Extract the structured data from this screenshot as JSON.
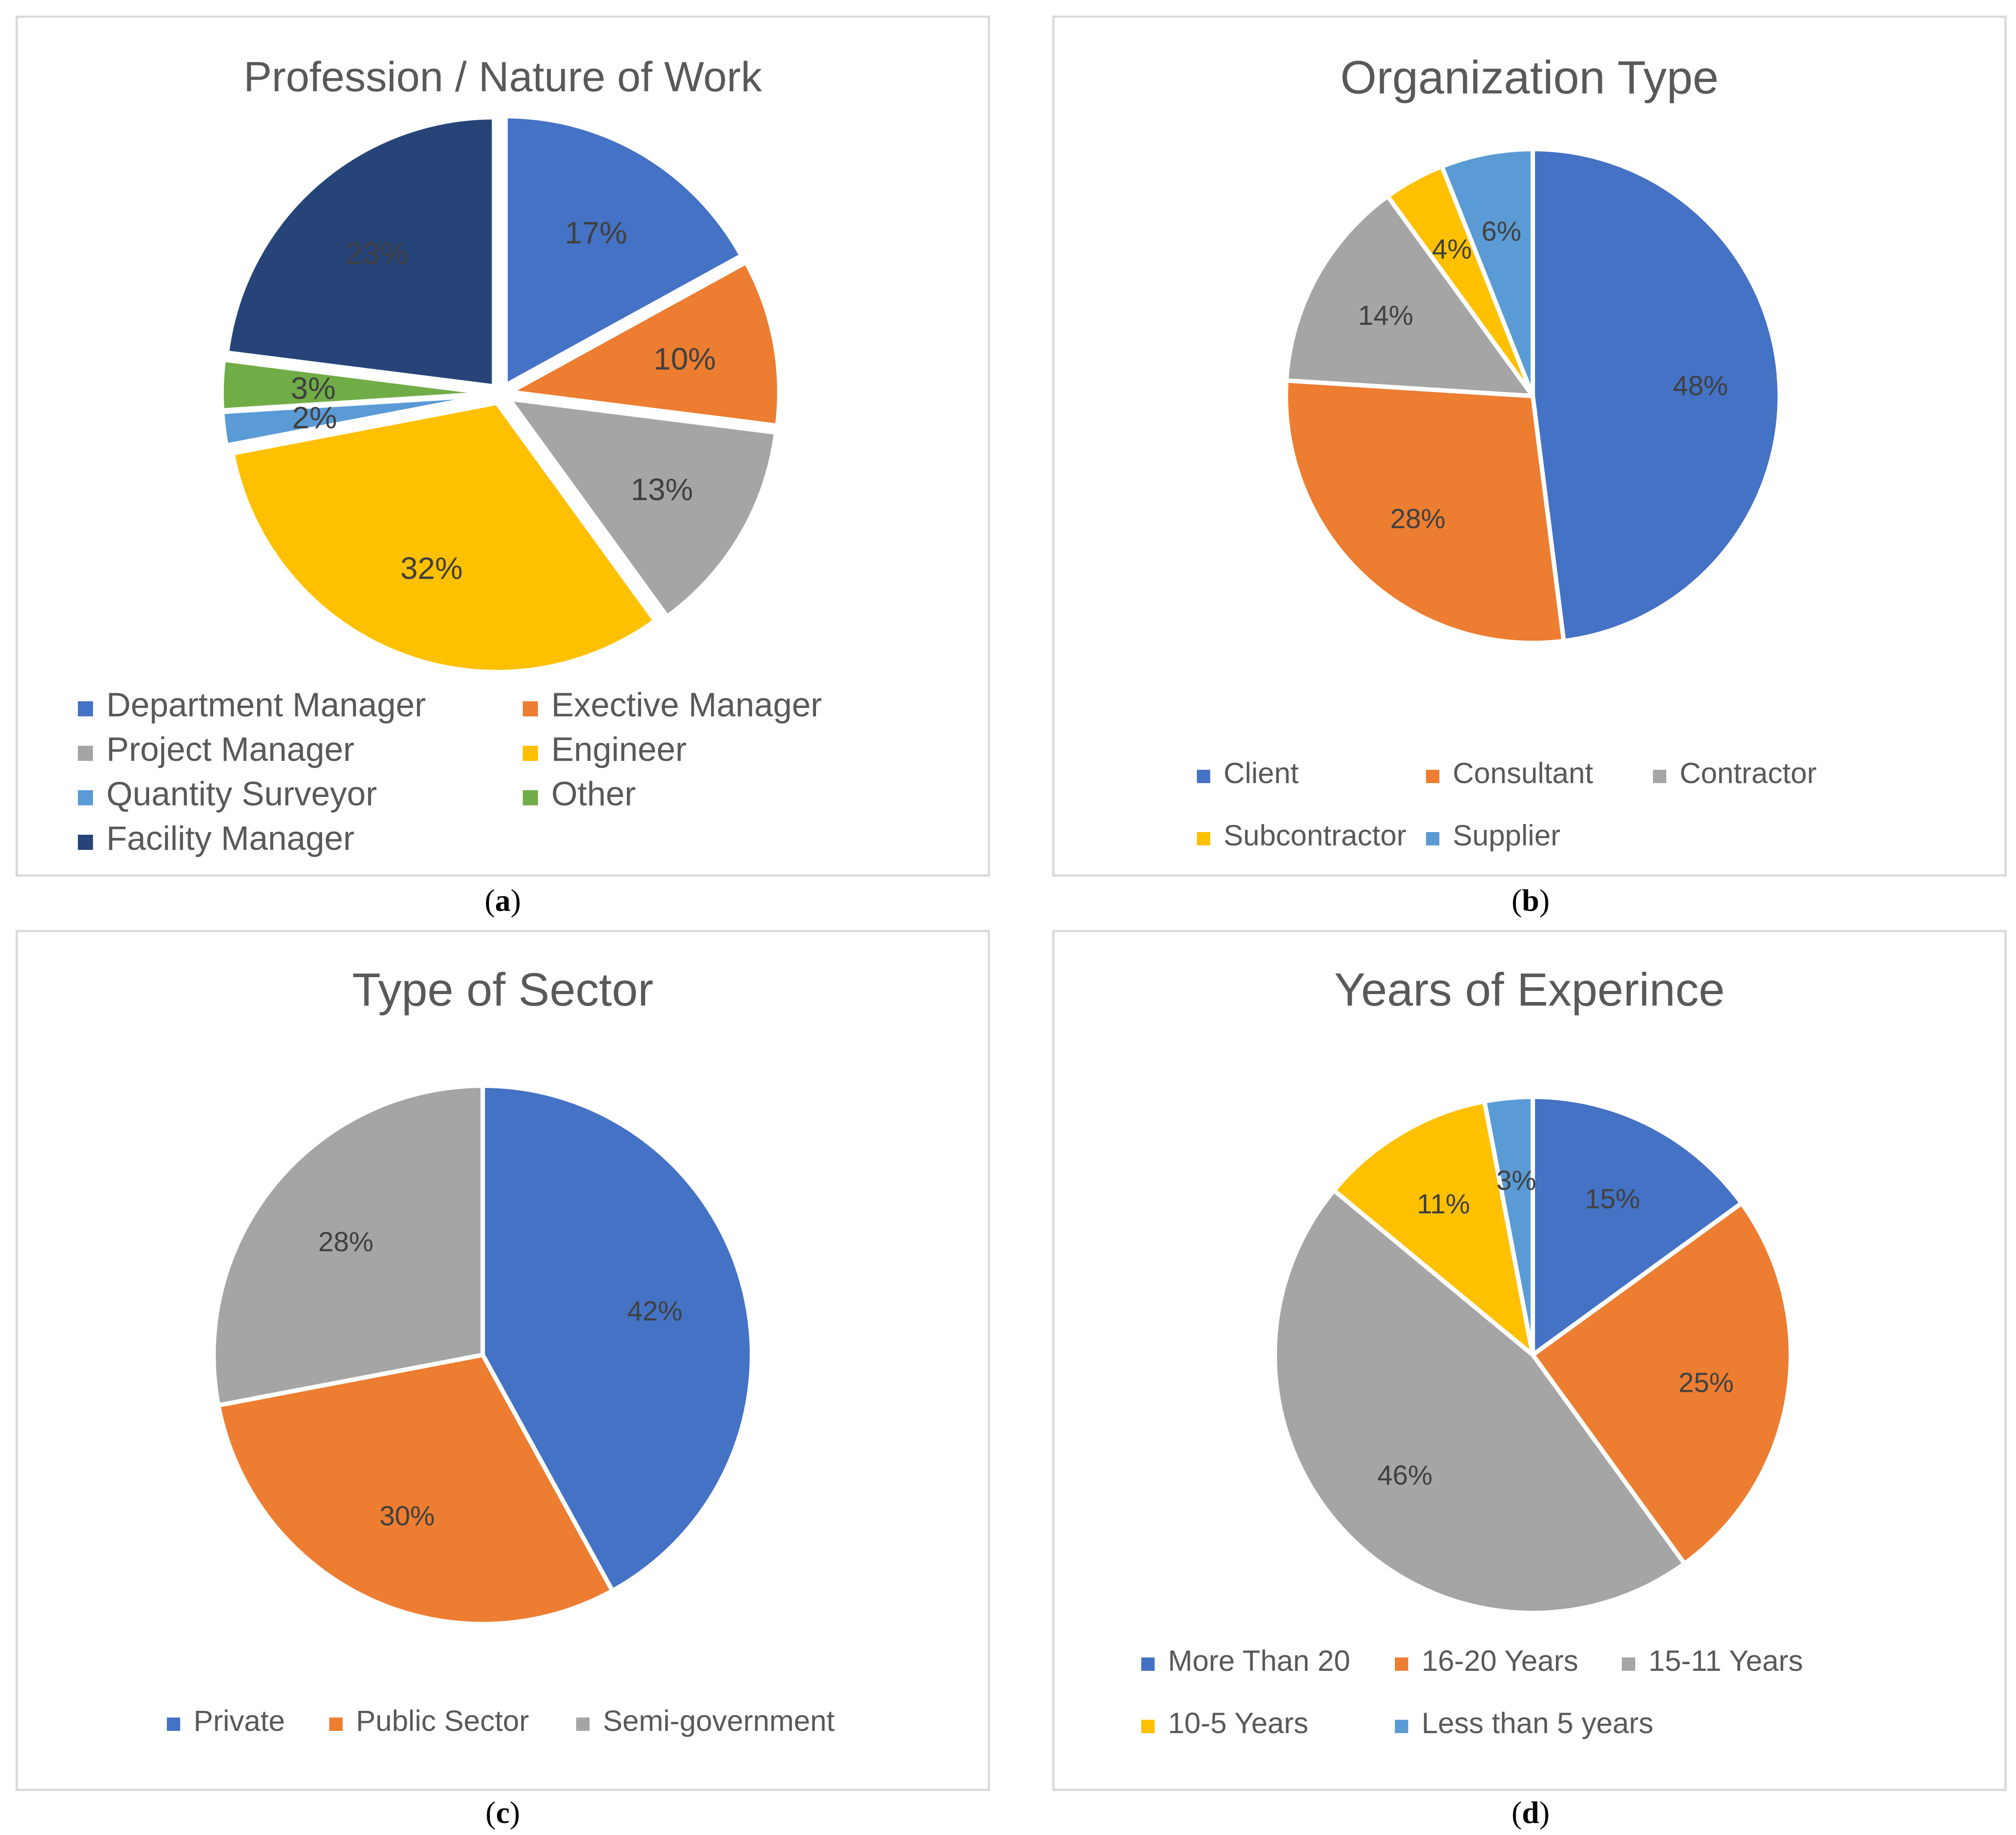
{
  "chart_data": [
    {
      "type": "pie",
      "panel": "a",
      "title": "Profession / Nature of Work",
      "caption": "a",
      "exploded": true,
      "categories": [
        "Department Manager",
        "Exective Manager",
        "Project Manager",
        "Engineer",
        "Quantity Surveyor",
        "Other",
        "Facility Manager"
      ],
      "values": [
        17,
        10,
        13,
        32,
        2,
        3,
        23
      ],
      "labels": [
        "17%",
        "10%",
        "13%",
        "32%",
        "2%",
        "3%",
        "23%"
      ],
      "colors": [
        "#4472C4",
        "#ED7D31",
        "#A5A5A5",
        "#FFC000",
        "#5B9BD5",
        "#70AD47",
        "#264478"
      ],
      "legend": "bottom"
    },
    {
      "type": "pie",
      "panel": "b",
      "title": "Organization Type",
      "caption": "b",
      "exploded": false,
      "categories": [
        "Client",
        "Consultant",
        "Contractor",
        "Subcontractor",
        "Supplier"
      ],
      "values": [
        48,
        28,
        14,
        4,
        6
      ],
      "labels": [
        "48%",
        "28%",
        "14%",
        "4%",
        "6%"
      ],
      "colors": [
        "#4472C4",
        "#ED7D31",
        "#A5A5A5",
        "#FFC000",
        "#5B9BD5"
      ],
      "legend": "bottom"
    },
    {
      "type": "pie",
      "panel": "c",
      "title": "Type of Sector",
      "caption": "c",
      "exploded": false,
      "categories": [
        "Private",
        "Public Sector",
        "Semi-government"
      ],
      "values": [
        42,
        30,
        28
      ],
      "labels": [
        "42%",
        "30%",
        "28%"
      ],
      "colors": [
        "#4472C4",
        "#ED7D31",
        "#A5A5A5"
      ],
      "legend": "bottom"
    },
    {
      "type": "pie",
      "panel": "d",
      "title": "Years of Experince",
      "caption": "d",
      "exploded": false,
      "categories": [
        "More Than 20",
        "16-20 Years",
        "15-11 Years",
        "10-5 Years",
        "Less than 5 years"
      ],
      "values": [
        15,
        25,
        46,
        11,
        3
      ],
      "labels": [
        "15%",
        "25%",
        "46%",
        "11%",
        "3%"
      ],
      "colors": [
        "#4472C4",
        "#ED7D31",
        "#A5A5A5",
        "#FFC000",
        "#5B9BD5"
      ],
      "legend": "bottom"
    }
  ]
}
